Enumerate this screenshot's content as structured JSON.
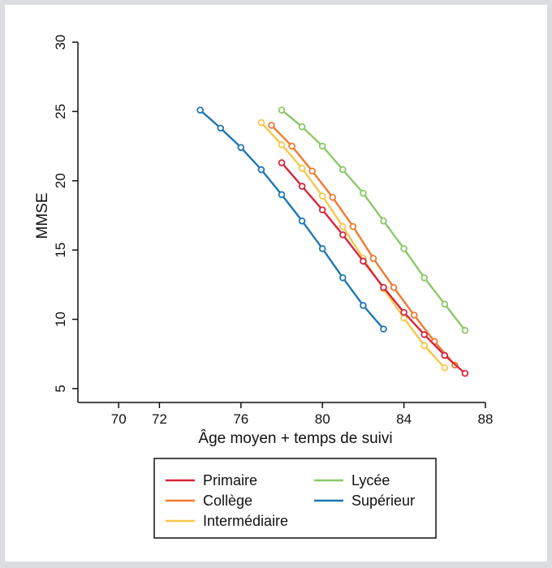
{
  "chart_data": {
    "type": "line",
    "xlabel": "Âge moyen + temps de suivi",
    "ylabel": "MMSE",
    "xlim": [
      68,
      88
    ],
    "ylim": [
      4,
      30
    ],
    "xticks": [
      70,
      72,
      76,
      80,
      84,
      88
    ],
    "yticks": [
      5,
      10,
      15,
      20,
      25,
      30
    ],
    "grid": false,
    "legend_position": "bottom",
    "series": [
      {
        "name": "Primaire",
        "color": "#d7263d",
        "points": [
          [
            78,
            21.3
          ],
          [
            79,
            19.6
          ],
          [
            80,
            17.9
          ],
          [
            81,
            16.1
          ],
          [
            82,
            14.2
          ],
          [
            83,
            12.3
          ],
          [
            84,
            10.5
          ],
          [
            85,
            8.9
          ],
          [
            86,
            7.4
          ],
          [
            87,
            6.1
          ]
        ]
      },
      {
        "name": "Collège",
        "color": "#f07a32",
        "points": [
          [
            77.5,
            24.0
          ],
          [
            78.5,
            22.5
          ],
          [
            79.5,
            20.7
          ],
          [
            80.5,
            18.8
          ],
          [
            81.5,
            16.7
          ],
          [
            82.5,
            14.4
          ],
          [
            83.5,
            12.3
          ],
          [
            84.5,
            10.3
          ],
          [
            85.5,
            8.4
          ],
          [
            86.5,
            6.7
          ]
        ]
      },
      {
        "name": "Intermédiaire",
        "color": "#f5c74a",
        "points": [
          [
            77,
            24.2
          ],
          [
            78,
            22.6
          ],
          [
            79,
            20.9
          ],
          [
            80,
            18.9
          ],
          [
            81,
            16.7
          ],
          [
            82,
            14.4
          ],
          [
            83,
            12.2
          ],
          [
            84,
            10.1
          ],
          [
            85,
            8.1
          ],
          [
            86,
            6.5
          ]
        ]
      },
      {
        "name": "Lycée",
        "color": "#8cc868",
        "points": [
          [
            78,
            25.1
          ],
          [
            79,
            23.9
          ],
          [
            80,
            22.5
          ],
          [
            81,
            20.8
          ],
          [
            82,
            19.1
          ],
          [
            83,
            17.1
          ],
          [
            84,
            15.1
          ],
          [
            85,
            13.0
          ],
          [
            86,
            11.1
          ],
          [
            87,
            9.2
          ]
        ]
      },
      {
        "name": "Supérieur",
        "color": "#1f77b4",
        "points": [
          [
            74,
            25.1
          ],
          [
            75,
            23.8
          ],
          [
            76,
            22.4
          ],
          [
            77,
            20.8
          ],
          [
            78,
            19.0
          ],
          [
            79,
            17.1
          ],
          [
            80,
            15.1
          ],
          [
            81,
            13.0
          ],
          [
            82,
            11.0
          ],
          [
            83,
            9.3
          ]
        ]
      }
    ]
  }
}
